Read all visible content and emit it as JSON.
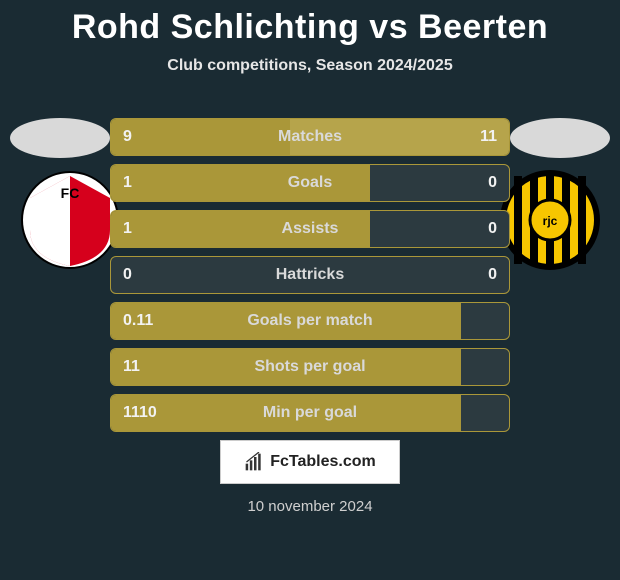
{
  "colors": {
    "bg": "#1a2b33",
    "bar_bg": "#2c3a40",
    "accent": "#aa9739",
    "accent_light": "#b6a44b",
    "title": "#ffffff",
    "subtitle": "#e6e6e6",
    "value_text": "#f2f2f2",
    "label_text": "#d9d9d9",
    "silhouette": "#d9d9d9",
    "date": "#cfcfcf"
  },
  "title": "Rohd Schlichting vs Beerten",
  "subtitle": "Club competitions, Season 2024/2025",
  "date": "10 november 2024",
  "watermark": "FcTables.com",
  "rows": [
    {
      "label": "Matches",
      "left_val": "9",
      "right_val": "11",
      "left_pct": 45,
      "right_pct": 55
    },
    {
      "label": "Goals",
      "left_val": "1",
      "right_val": "0",
      "left_pct": 65,
      "right_pct": 0
    },
    {
      "label": "Assists",
      "left_val": "1",
      "right_val": "0",
      "left_pct": 65,
      "right_pct": 0
    },
    {
      "label": "Hattricks",
      "left_val": "0",
      "right_val": "0",
      "left_pct": 0,
      "right_pct": 0
    },
    {
      "label": "Goals per match",
      "left_val": "0.11",
      "right_val": "",
      "left_pct": 88,
      "right_pct": 0
    },
    {
      "label": "Shots per goal",
      "left_val": "11",
      "right_val": "",
      "left_pct": 88,
      "right_pct": 0
    },
    {
      "label": "Min per goal",
      "left_val": "1110",
      "right_val": "",
      "left_pct": 88,
      "right_pct": 0
    }
  ],
  "clubs": {
    "left": {
      "name": "FC Utrecht",
      "badge_bg": "#ffffff",
      "primary": "#d6001c",
      "stripe": "#ffffff"
    },
    "right": {
      "name": "Roda JC",
      "badge_bg": "#000000",
      "primary": "#f7c600",
      "inner": "#000000"
    }
  }
}
